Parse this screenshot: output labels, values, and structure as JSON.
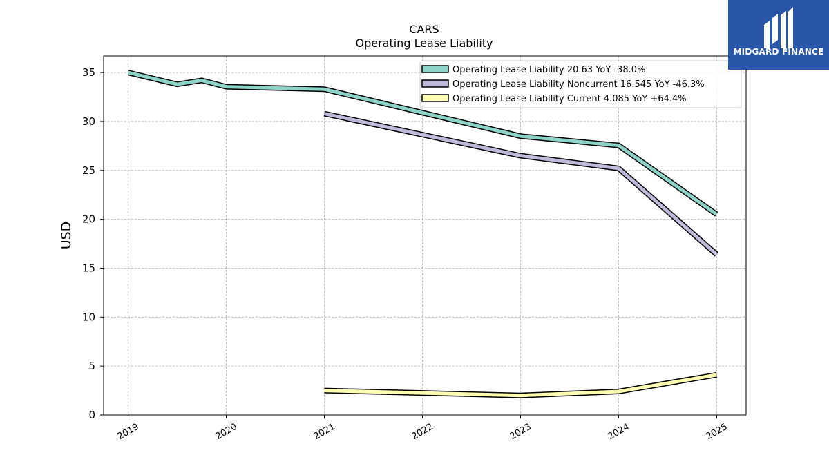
{
  "chart_data": {
    "type": "line",
    "title": "CARS",
    "subtitle": "Operating Lease Liability",
    "xlabel": "",
    "ylabel": "USD",
    "xlim": [
      2018.75,
      2025.3
    ],
    "ylim": [
      0,
      36.7
    ],
    "yticks": [
      0,
      5,
      10,
      15,
      20,
      25,
      30,
      35
    ],
    "xticks": [
      {
        "v": 2019,
        "label": "2019"
      },
      {
        "v": 2020,
        "label": "2020"
      },
      {
        "v": 2021,
        "label": "2021"
      },
      {
        "v": 2022,
        "label": "2022"
      },
      {
        "v": 2023,
        "label": "2023"
      },
      {
        "v": 2024,
        "label": "2024"
      },
      {
        "v": 2025,
        "label": "2025"
      }
    ],
    "grid": true,
    "legend_position": "top-right",
    "series": [
      {
        "name": "Operating Lease Liability",
        "legend": "Operating Lease Liability  20.63 YoY -38.0%",
        "color": "#8dd3c7",
        "points": [
          [
            2019,
            35.0
          ],
          [
            2019.5,
            33.8
          ],
          [
            2019.75,
            34.2
          ],
          [
            2020,
            33.55
          ],
          [
            2021,
            33.3
          ],
          [
            2023,
            28.5
          ],
          [
            2024,
            27.55
          ],
          [
            2025,
            20.5
          ]
        ]
      },
      {
        "name": "Operating Lease Liability Noncurrent",
        "legend": "Operating Lease Liability Noncurrent  16.545 YoY -46.3%",
        "color": "#bebada",
        "points": [
          [
            2021,
            30.8
          ],
          [
            2023,
            26.5
          ],
          [
            2024,
            25.2
          ],
          [
            2025,
            16.4
          ]
        ]
      },
      {
        "name": "Operating Lease Liability Current",
        "legend": "Operating Lease Liability Current  4.085 YoY +64.4%",
        "color": "#ffffb3",
        "points": [
          [
            2021,
            2.5
          ],
          [
            2023,
            2.0
          ],
          [
            2024,
            2.4
          ],
          [
            2025,
            4.1
          ]
        ]
      }
    ]
  },
  "logo": {
    "text": "MIDGARD FINANCE",
    "color": "#2a56a8"
  }
}
